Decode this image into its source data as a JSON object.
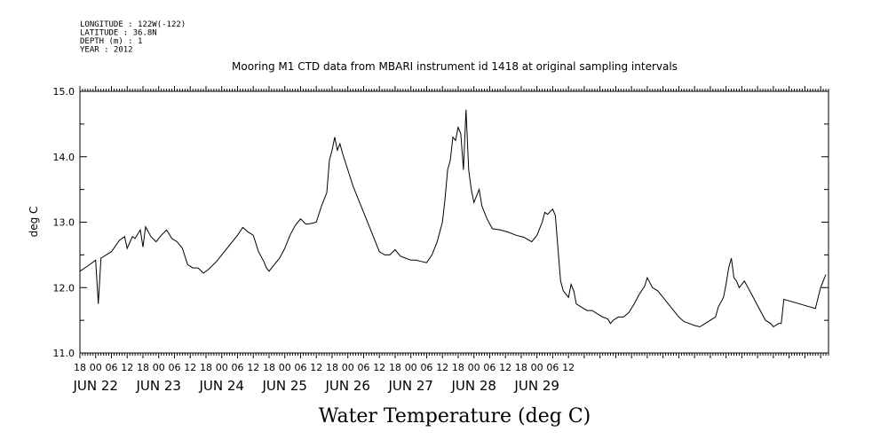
{
  "header": {
    "meta_lines": [
      "LONGITUDE : 122W(-122)",
      "LATITUDE : 36.8N",
      "DEPTH (m) : 1",
      "YEAR : 2012"
    ]
  },
  "chart_data": {
    "type": "line",
    "title": "Mooring M1 CTD data from MBARI instrument id 1418 at original sampling intervals",
    "ylabel": "deg C",
    "xlabel_main": "Water Temperature (deg C)",
    "ylim": [
      11.0,
      15.0
    ],
    "y_ticks": [
      "11.0",
      "12.0",
      "13.0",
      "14.0",
      "15.0"
    ],
    "x_hour_labels": [
      "18",
      "00",
      "06",
      "12",
      "18",
      "00",
      "06",
      "12",
      "18",
      "00",
      "06",
      "12",
      "18",
      "00",
      "06",
      "12",
      "18",
      "00",
      "06",
      "12",
      "18",
      "00",
      "06",
      "12",
      "18",
      "00",
      "06",
      "12",
      "18",
      "00",
      "06",
      "12"
    ],
    "x_day_labels": [
      "JUN 22",
      "JUN 23",
      "JUN 24",
      "JUN 25",
      "JUN 26",
      "JUN 27",
      "JUN 28",
      "JUN 29"
    ],
    "series": [
      {
        "color": "#000000",
        "points": [
          [
            0,
            12.25
          ],
          [
            3,
            12.33
          ],
          [
            6,
            12.42
          ],
          [
            7,
            11.75
          ],
          [
            8,
            12.45
          ],
          [
            10,
            12.5
          ],
          [
            12,
            12.55
          ],
          [
            15,
            12.72
          ],
          [
            17,
            12.78
          ],
          [
            18,
            12.6
          ],
          [
            20,
            12.78
          ],
          [
            21,
            12.75
          ],
          [
            23,
            12.88
          ],
          [
            24,
            12.62
          ],
          [
            25,
            12.93
          ],
          [
            27,
            12.78
          ],
          [
            29,
            12.7
          ],
          [
            31,
            12.8
          ],
          [
            33,
            12.88
          ],
          [
            35,
            12.75
          ],
          [
            37,
            12.7
          ],
          [
            39,
            12.6
          ],
          [
            41,
            12.35
          ],
          [
            43,
            12.3
          ],
          [
            45,
            12.3
          ],
          [
            47,
            12.22
          ],
          [
            49,
            12.28
          ],
          [
            52,
            12.4
          ],
          [
            55,
            12.55
          ],
          [
            58,
            12.7
          ],
          [
            60,
            12.8
          ],
          [
            62,
            12.92
          ],
          [
            64,
            12.85
          ],
          [
            66,
            12.8
          ],
          [
            68,
            12.55
          ],
          [
            70,
            12.4
          ],
          [
            71,
            12.3
          ],
          [
            72,
            12.25
          ],
          [
            73,
            12.3
          ],
          [
            76,
            12.45
          ],
          [
            78,
            12.6
          ],
          [
            80,
            12.8
          ],
          [
            82,
            12.95
          ],
          [
            84,
            13.05
          ],
          [
            86,
            12.97
          ],
          [
            88,
            12.98
          ],
          [
            90,
            13.0
          ],
          [
            92,
            13.25
          ],
          [
            94,
            13.45
          ],
          [
            95,
            13.95
          ],
          [
            96,
            14.1
          ],
          [
            97,
            14.3
          ],
          [
            98,
            14.1
          ],
          [
            99,
            14.2
          ],
          [
            100,
            14.05
          ],
          [
            102,
            13.8
          ],
          [
            104,
            13.55
          ],
          [
            106,
            13.35
          ],
          [
            108,
            13.15
          ],
          [
            110,
            12.95
          ],
          [
            112,
            12.75
          ],
          [
            114,
            12.55
          ],
          [
            116,
            12.5
          ],
          [
            118,
            12.5
          ],
          [
            120,
            12.58
          ],
          [
            122,
            12.48
          ],
          [
            124,
            12.45
          ],
          [
            126,
            12.42
          ],
          [
            128,
            12.42
          ],
          [
            130,
            12.4
          ],
          [
            132,
            12.38
          ],
          [
            134,
            12.5
          ],
          [
            136,
            12.7
          ],
          [
            138,
            13.0
          ],
          [
            139,
            13.35
          ],
          [
            140,
            13.8
          ],
          [
            141,
            13.95
          ],
          [
            142,
            14.3
          ],
          [
            143,
            14.25
          ],
          [
            144,
            14.45
          ],
          [
            145,
            14.35
          ],
          [
            146,
            13.8
          ],
          [
            147,
            14.72
          ],
          [
            148,
            13.8
          ],
          [
            149,
            13.5
          ],
          [
            150,
            13.3
          ],
          [
            151,
            13.4
          ],
          [
            152,
            13.5
          ],
          [
            153,
            13.25
          ],
          [
            155,
            13.05
          ],
          [
            157,
            12.9
          ],
          [
            160,
            12.88
          ],
          [
            163,
            12.85
          ],
          [
            166,
            12.8
          ],
          [
            169,
            12.77
          ],
          [
            172,
            12.7
          ],
          [
            174,
            12.8
          ],
          [
            176,
            13.0
          ],
          [
            177,
            13.15
          ],
          [
            178,
            13.12
          ],
          [
            180,
            13.2
          ],
          [
            181,
            13.1
          ],
          [
            182,
            12.6
          ],
          [
            183,
            12.1
          ],
          [
            184,
            11.95
          ],
          [
            185,
            11.9
          ],
          [
            186,
            11.85
          ],
          [
            187,
            12.05
          ],
          [
            188,
            11.95
          ],
          [
            189,
            11.75
          ],
          [
            191,
            11.7
          ],
          [
            193,
            11.65
          ],
          [
            195,
            11.65
          ],
          [
            197,
            11.6
          ],
          [
            199,
            11.55
          ],
          [
            201,
            11.52
          ],
          [
            202,
            11.45
          ],
          [
            203,
            11.5
          ],
          [
            205,
            11.55
          ],
          [
            207,
            11.55
          ],
          [
            209,
            11.62
          ],
          [
            211,
            11.75
          ],
          [
            213,
            11.9
          ],
          [
            215,
            12.02
          ],
          [
            216,
            12.15
          ],
          [
            218,
            12.0
          ],
          [
            220,
            11.95
          ],
          [
            222,
            11.85
          ],
          [
            224,
            11.75
          ],
          [
            226,
            11.65
          ],
          [
            228,
            11.55
          ],
          [
            230,
            11.48
          ],
          [
            232,
            11.45
          ],
          [
            234,
            11.42
          ],
          [
            236,
            11.4
          ],
          [
            238,
            11.45
          ],
          [
            240,
            11.5
          ],
          [
            242,
            11.55
          ],
          [
            243,
            11.7
          ],
          [
            245,
            11.85
          ],
          [
            246,
            12.05
          ],
          [
            247,
            12.3
          ],
          [
            248,
            12.45
          ],
          [
            249,
            12.15
          ],
          [
            250,
            12.1
          ],
          [
            251,
            12.0
          ],
          [
            253,
            12.1
          ],
          [
            255,
            11.95
          ],
          [
            257,
            11.8
          ],
          [
            259,
            11.65
          ],
          [
            261,
            11.5
          ],
          [
            263,
            11.45
          ],
          [
            264,
            11.4
          ],
          [
            266,
            11.45
          ],
          [
            267,
            11.45
          ],
          [
            268,
            11.82
          ],
          [
            274,
            11.75
          ],
          [
            280,
            11.68
          ],
          [
            282,
            12.0
          ],
          [
            284,
            12.2
          ]
        ]
      }
    ]
  }
}
